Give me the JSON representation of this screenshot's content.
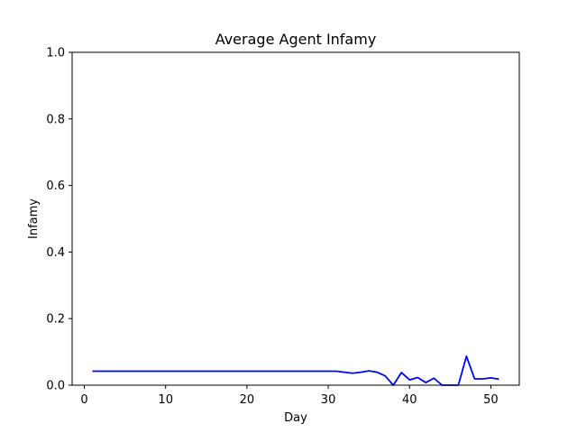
{
  "chart_data": {
    "type": "line",
    "title": "Average Agent Infamy",
    "xlabel": "Day",
    "ylabel": "Infamy",
    "xlim": [
      -1.5,
      53.5
    ],
    "ylim": [
      0,
      1.0
    ],
    "xticks": [
      0,
      10,
      20,
      30,
      40,
      50
    ],
    "xtick_labels": [
      "0",
      "10",
      "20",
      "30",
      "40",
      "50"
    ],
    "yticks": [
      0,
      0.2,
      0.4,
      0.6,
      0.8,
      1.0
    ],
    "ytick_labels": [
      "0.0",
      "0.2",
      "0.4",
      "0.6",
      "0.8",
      "1.0"
    ],
    "grid": false,
    "series": [
      {
        "color": "#0000ff",
        "x": [
          1,
          2,
          3,
          4,
          5,
          6,
          7,
          8,
          9,
          10,
          11,
          12,
          13,
          14,
          15,
          16,
          17,
          18,
          19,
          20,
          21,
          22,
          23,
          24,
          25,
          26,
          27,
          28,
          29,
          30,
          31,
          32,
          33,
          34,
          35,
          36,
          37,
          38,
          39,
          40,
          41,
          42,
          43,
          44,
          45,
          46,
          47,
          48,
          49,
          50,
          51
        ],
        "y": [
          0.042,
          0.042,
          0.042,
          0.042,
          0.042,
          0.042,
          0.042,
          0.042,
          0.042,
          0.042,
          0.042,
          0.042,
          0.042,
          0.042,
          0.042,
          0.042,
          0.042,
          0.042,
          0.042,
          0.042,
          0.042,
          0.042,
          0.042,
          0.042,
          0.042,
          0.042,
          0.042,
          0.042,
          0.042,
          0.042,
          0.042,
          0.039,
          0.036,
          0.039,
          0.043,
          0.039,
          0.028,
          0.0,
          0.038,
          0.016,
          0.023,
          0.008,
          0.021,
          0.0,
          0.0,
          0.0,
          0.087,
          0.019,
          0.019,
          0.022,
          0.018
        ]
      }
    ]
  }
}
